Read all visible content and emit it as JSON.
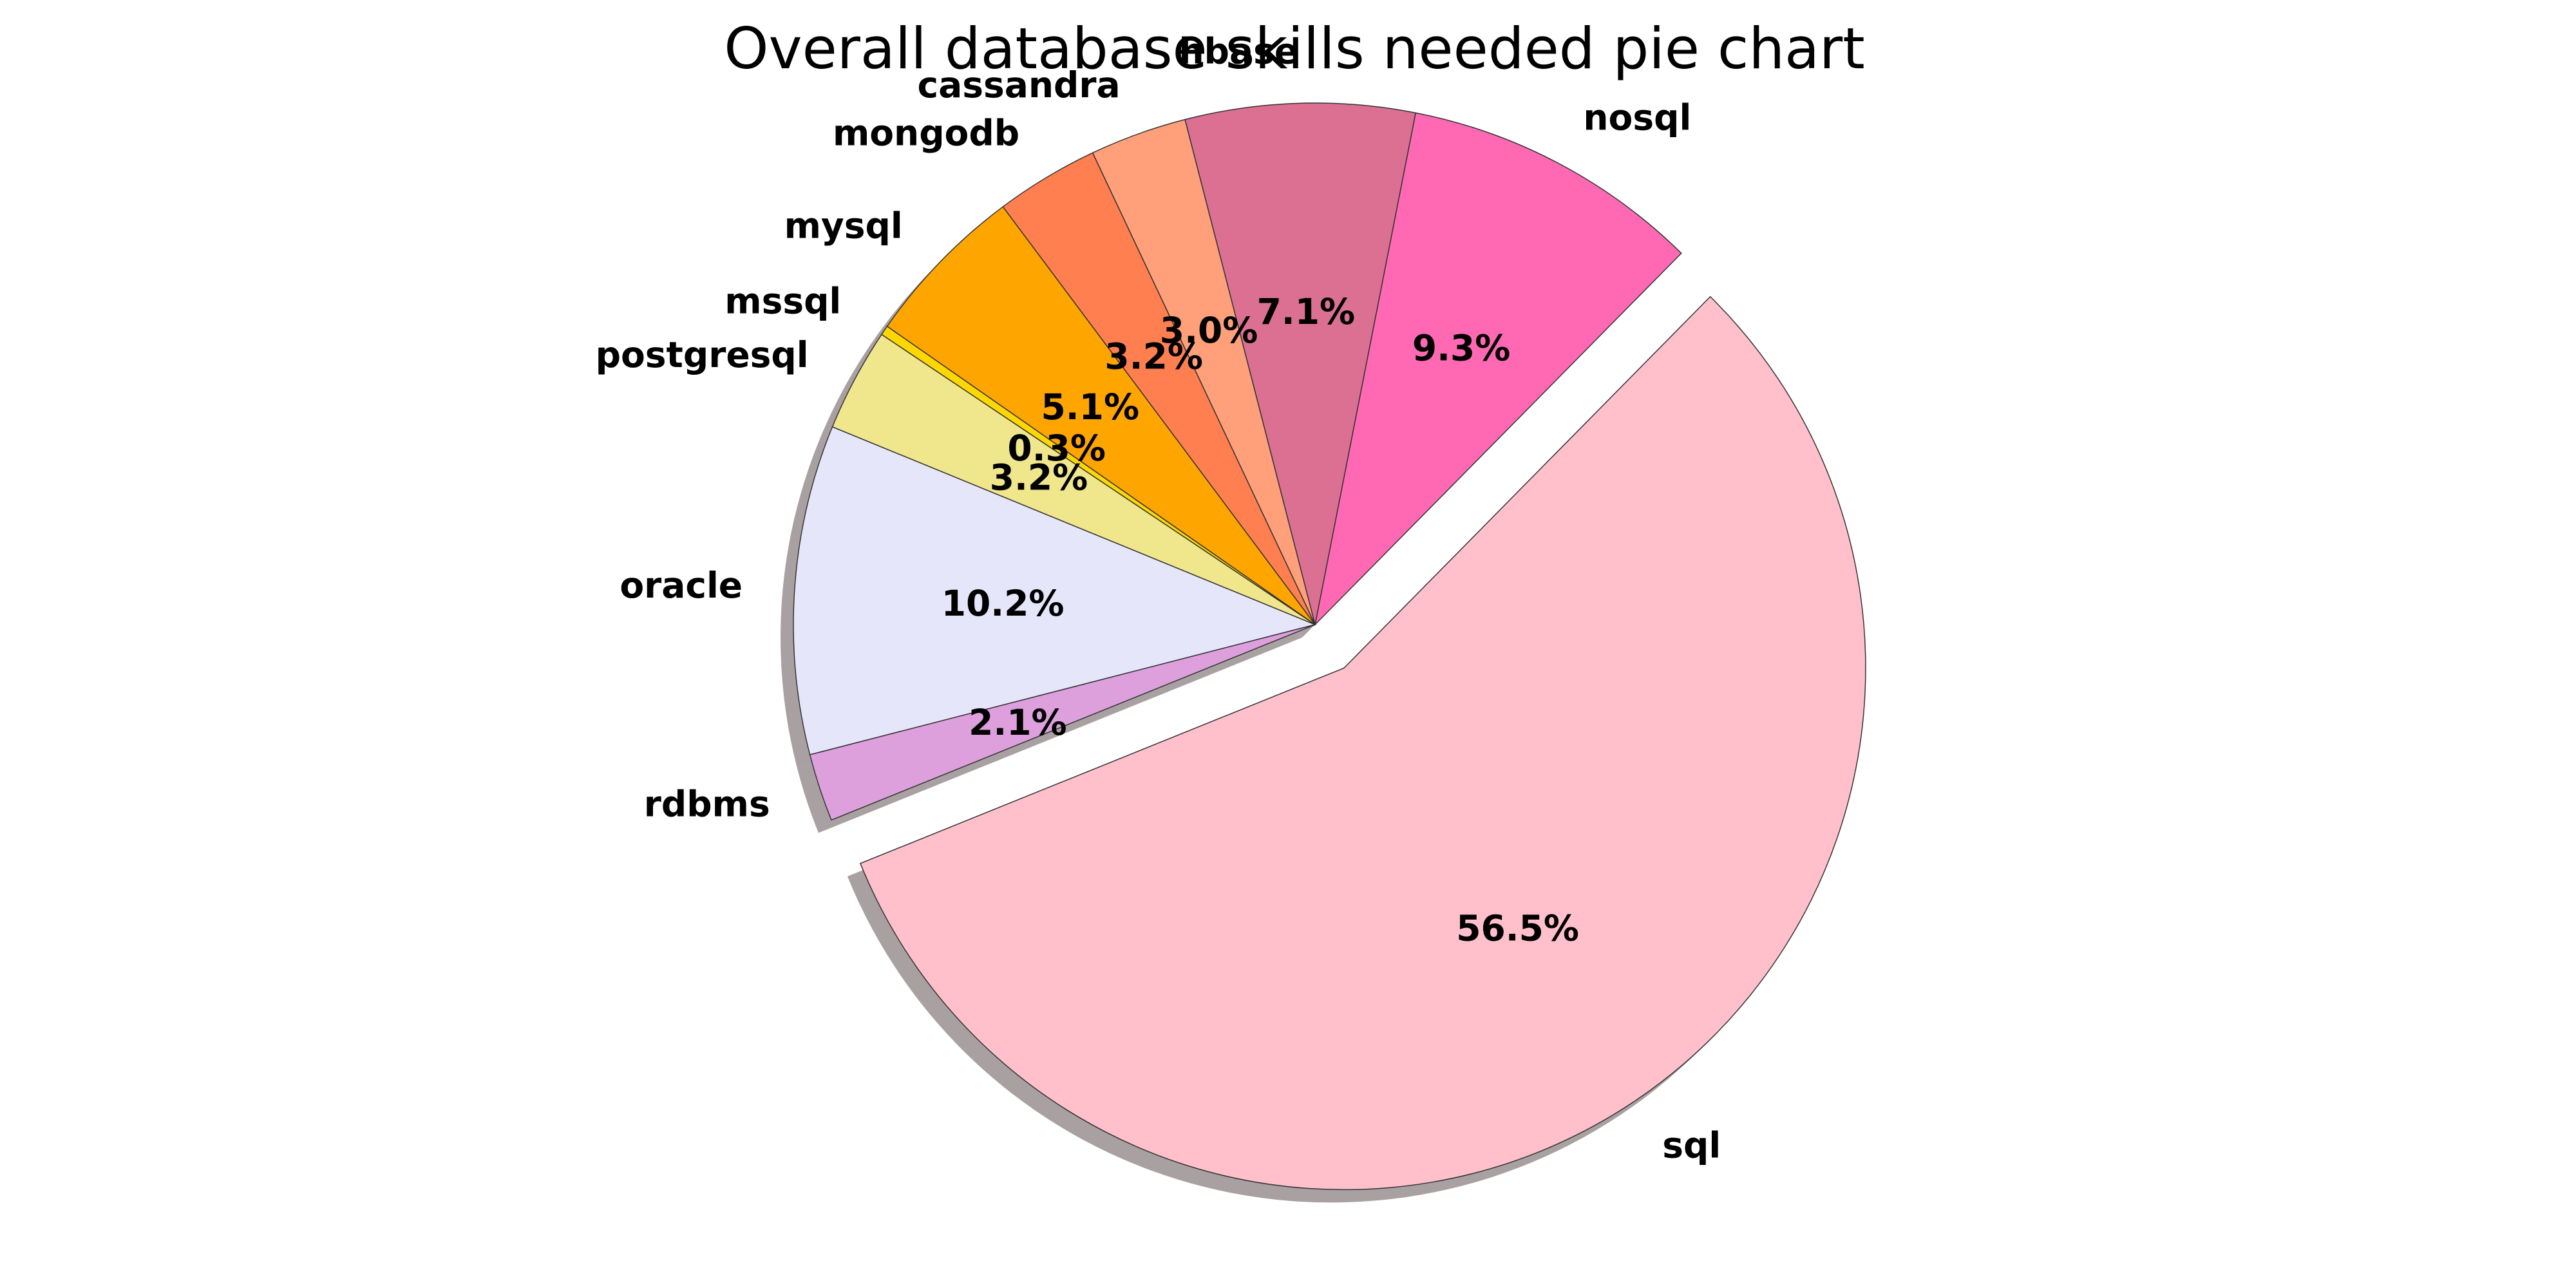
{
  "chart_data": {
    "type": "pie",
    "title": "Overall database skills needed pie chart",
    "labels": [
      "sql",
      "nosql",
      "hbase",
      "cassandra",
      "mongodb",
      "mysql",
      "mssql",
      "postgresql",
      "oracle",
      "rdbms"
    ],
    "values": [
      56.5,
      9.3,
      7.1,
      3.0,
      3.2,
      5.1,
      0.3,
      3.2,
      10.2,
      2.1
    ],
    "percent_labels": [
      "56.5%",
      "9.3%",
      "7.1%",
      "3.0%",
      "3.2%",
      "5.1%",
      "0.3%",
      "3.2%",
      "10.2%",
      "2.1%"
    ],
    "colors": [
      "#ffc0cb",
      "#ff69b4",
      "#db7093",
      "#ffa07a",
      "#ff7f50",
      "#ffa500",
      "#ffd700",
      "#f0e68c",
      "#e6e6fa",
      "#dda0dd"
    ],
    "exploded": [
      "sql"
    ],
    "shadow": true,
    "start_angle_deg": 202,
    "direction": "counterclockwise",
    "legend": "none"
  }
}
